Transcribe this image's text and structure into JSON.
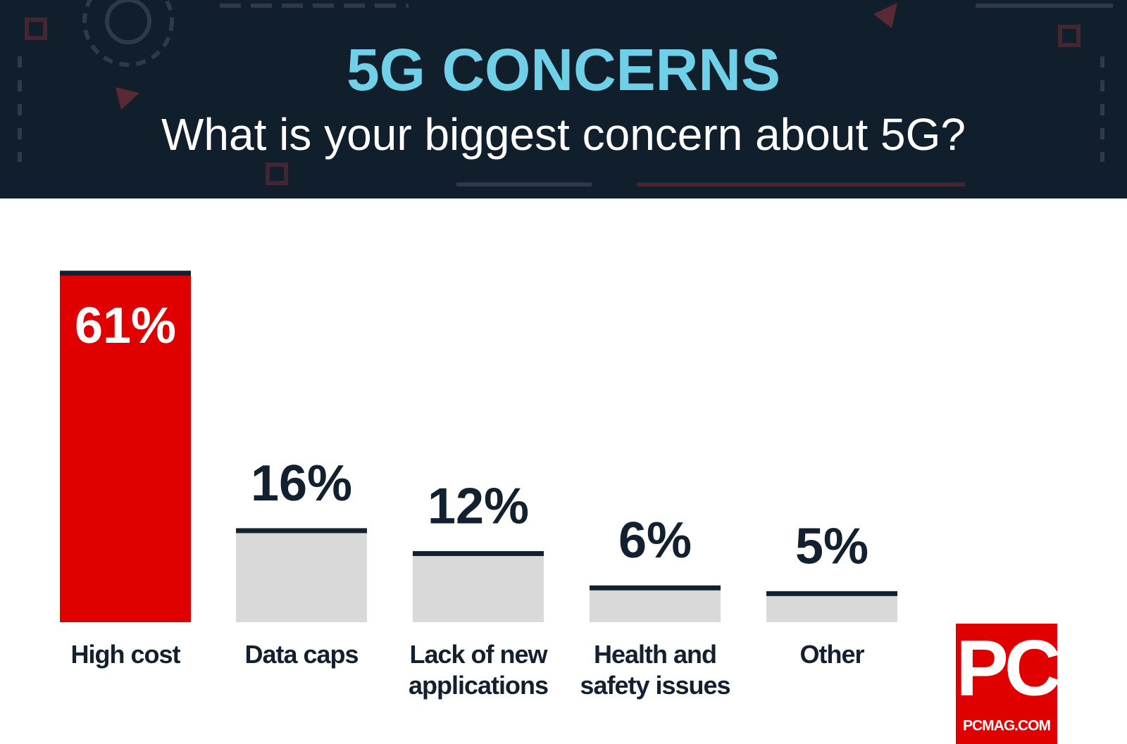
{
  "chart_data": {
    "type": "bar",
    "title": "5G CONCERNS",
    "subtitle": "What is your biggest concern about 5G?",
    "categories": [
      "High cost",
      "Data caps",
      "Lack of new applications",
      "Health and safety issues",
      "Other"
    ],
    "values": [
      61,
      16,
      12,
      6,
      5
    ],
    "value_labels": [
      "61%",
      "16%",
      "12%",
      "6%",
      "5%"
    ],
    "colors": [
      "#e10000",
      "#d9d9d9",
      "#d9d9d9",
      "#d9d9d9",
      "#d9d9d9"
    ],
    "cap_color": "#13202f"
  },
  "logo": {
    "text": "PC",
    "url": "PCMAG.COM"
  }
}
